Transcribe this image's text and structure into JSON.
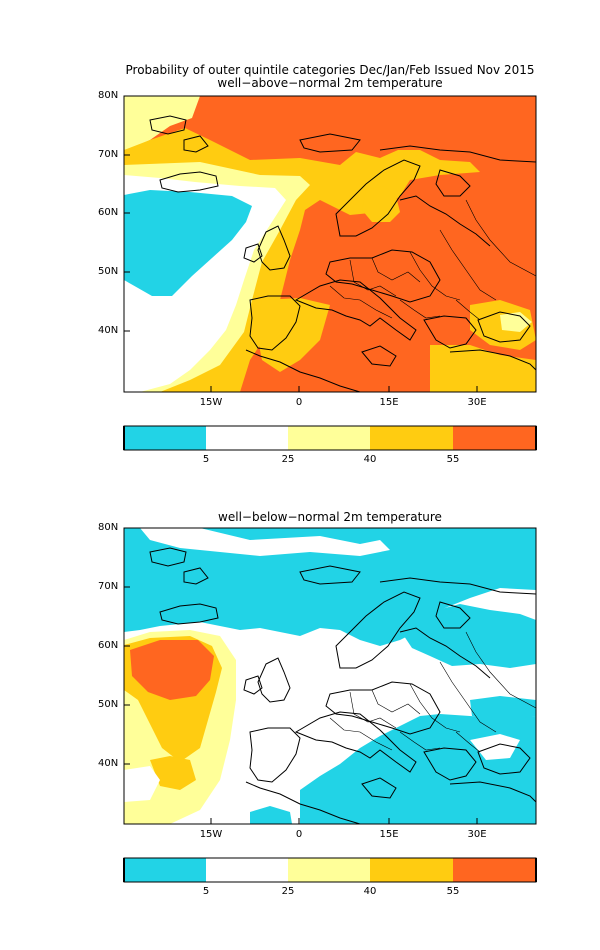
{
  "header": {
    "main_title": "Probability of outer quintile categories Dec/Jan/Feb Issued Nov 2015"
  },
  "panels": [
    {
      "subtitle": "well−above−normal 2m temperature",
      "lat_labels": [
        "80N",
        "70N",
        "60N",
        "50N",
        "40N"
      ],
      "lon_labels": [
        "15W",
        "0",
        "15E",
        "30E"
      ]
    },
    {
      "subtitle": "well−below−normal 2m temperature",
      "lat_labels": [
        "80N",
        "70N",
        "60N",
        "50N",
        "40N"
      ],
      "lon_labels": [
        "15W",
        "0",
        "15E",
        "30E"
      ]
    }
  ],
  "legend": {
    "tick_labels": [
      "5",
      "25",
      "40",
      "55"
    ],
    "colors": [
      "#22d3e6",
      "#ffffff",
      "#ffff99",
      "#ffcc11",
      "#ff6620"
    ]
  },
  "colors": {
    "cyan": "#22d3e6",
    "white": "#ffffff",
    "light_yellow": "#ffff99",
    "gold": "#ffcc11",
    "orange": "#ff6620"
  }
}
